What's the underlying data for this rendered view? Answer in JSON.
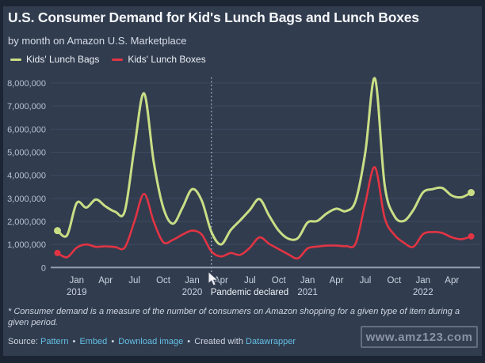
{
  "header": {
    "title": "U.S. Consumer Demand for Kid's Lunch Bags and Lunch Boxes",
    "subtitle": "by month on Amazon U.S. Marketplace"
  },
  "legend": [
    {
      "label": "Kids' Lunch Bags",
      "color": "#c9de85"
    },
    {
      "label": "Kids' Lunch Boxes",
      "color": "#e23443"
    }
  ],
  "chart_data": {
    "type": "line",
    "title": "U.S. Consumer Demand for Kid's Lunch Bags and Lunch Boxes",
    "subtitle": "by month on Amazon U.S. Marketplace",
    "x_unit": "month",
    "months": [
      "Nov 2018",
      "Dec 2018",
      "Jan 2019",
      "Feb 2019",
      "Mar 2019",
      "Apr 2019",
      "May 2019",
      "Jun 2019",
      "Jul 2019",
      "Aug 2019",
      "Sep 2019",
      "Oct 2019",
      "Nov 2019",
      "Dec 2019",
      "Jan 2020",
      "Feb 2020",
      "Mar 2020",
      "Apr 2020",
      "May 2020",
      "Jun 2020",
      "Jul 2020",
      "Aug 2020",
      "Sep 2020",
      "Oct 2020",
      "Nov 2020",
      "Dec 2020",
      "Jan 2021",
      "Feb 2021",
      "Mar 2021",
      "Apr 2021",
      "May 2021",
      "Jun 2021",
      "Jul 2021",
      "Aug 2021",
      "Sep 2021",
      "Oct 2021",
      "Nov 2021",
      "Dec 2021",
      "Jan 2022",
      "Feb 2022",
      "Mar 2022",
      "Apr 2022",
      "May 2022",
      "Jun 2022"
    ],
    "series": [
      {
        "name": "Kids' Lunch Bags",
        "color": "#c9de85",
        "values": [
          1600000,
          1400000,
          2800000,
          2600000,
          2950000,
          2650000,
          2420000,
          2450000,
          5200000,
          7550000,
          4600000,
          2600000,
          1900000,
          2600000,
          3400000,
          2900000,
          1550000,
          1000000,
          1620000,
          2050000,
          2500000,
          2970000,
          2250000,
          1600000,
          1250000,
          1280000,
          1950000,
          2020000,
          2350000,
          2550000,
          2450000,
          2900000,
          5000000,
          8200000,
          3600000,
          2250000,
          2020000,
          2500000,
          3260000,
          3400000,
          3450000,
          3120000,
          3050000,
          3250000
        ]
      },
      {
        "name": "Kids' Lunch Boxes",
        "color": "#e23443",
        "values": [
          630000,
          450000,
          860000,
          1000000,
          900000,
          920000,
          890000,
          870000,
          2000000,
          3200000,
          2000000,
          1100000,
          1200000,
          1430000,
          1600000,
          1430000,
          700000,
          480000,
          630000,
          550000,
          860000,
          1310000,
          1030000,
          800000,
          570000,
          400000,
          830000,
          910000,
          950000,
          950000,
          930000,
          1050000,
          2800000,
          4350000,
          2170000,
          1430000,
          1080000,
          900000,
          1450000,
          1540000,
          1500000,
          1310000,
          1230000,
          1350000
        ]
      }
    ],
    "ylim": [
      0,
      8000000
    ],
    "y_ticks": [
      0,
      1000000,
      2000000,
      3000000,
      4000000,
      5000000,
      6000000,
      7000000,
      8000000
    ],
    "x_ticks": [
      {
        "i": 2,
        "m": "Jan",
        "y": "2019"
      },
      {
        "i": 5,
        "m": "Apr"
      },
      {
        "i": 8,
        "m": "Jul"
      },
      {
        "i": 11,
        "m": "Oct"
      },
      {
        "i": 14,
        "m": "Jan",
        "y": "2020"
      },
      {
        "i": 17,
        "m": "Apr"
      },
      {
        "i": 20,
        "m": "Jul"
      },
      {
        "i": 23,
        "m": "Oct"
      },
      {
        "i": 26,
        "m": "Jan",
        "y": "2021"
      },
      {
        "i": 29,
        "m": "Apr"
      },
      {
        "i": 32,
        "m": "Jul"
      },
      {
        "i": 35,
        "m": "Oct"
      },
      {
        "i": 38,
        "m": "Jan",
        "y": "2022"
      },
      {
        "i": 41,
        "m": "Apr"
      }
    ],
    "annotation": {
      "label": "Pandemic declared",
      "month_index": 16
    },
    "grid": true,
    "legend_position": "top-left"
  },
  "footnote": "* Consumer demand is a measure of the number of consumers on Amazon shopping for a given type of item during a given period.",
  "source": {
    "prefix": "Source:",
    "sep": "•",
    "created_with": "Created with",
    "links": [
      "Pattern",
      "Embed",
      "Download image",
      "Datawrapper"
    ]
  },
  "watermark": "www.amz123.com",
  "colors": {
    "background": "#313c4f",
    "frame": "#1c2533",
    "grid": "#3e4a60",
    "axis": "#93a1b5",
    "tick_label": "#b6c0ce",
    "x_label": "#ccd4e0",
    "annotation_line": "#a9bed2",
    "annotation_text": "#eef2f7",
    "link": "#64bfe3",
    "bags_line": "#c9de85",
    "boxes_line": "#e23443"
  }
}
